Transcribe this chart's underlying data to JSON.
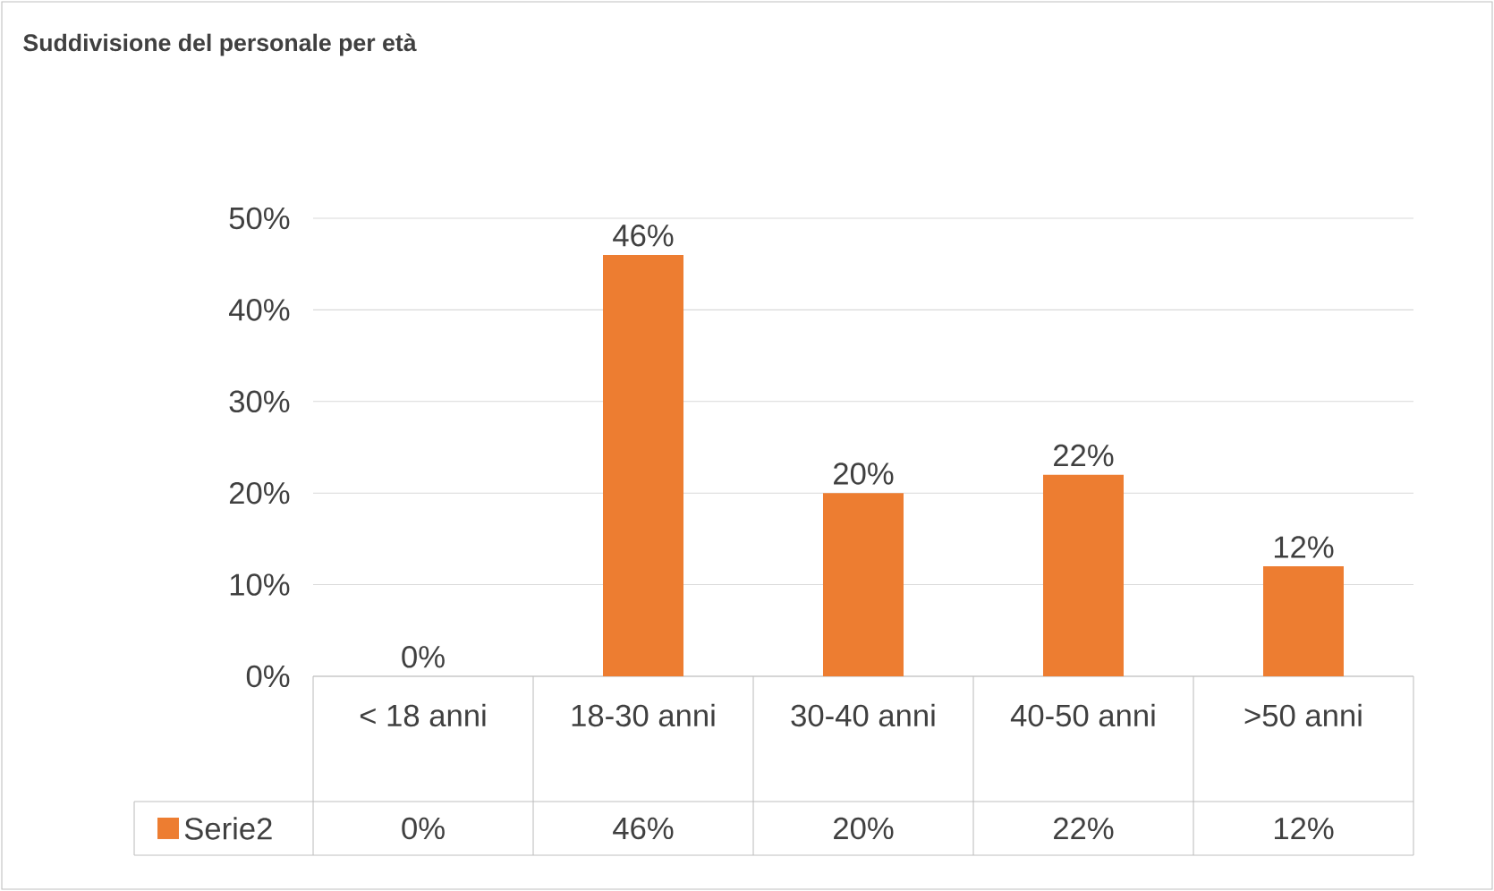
{
  "chart_data": {
    "type": "bar",
    "title": "Suddivisione del personale per età",
    "categories": [
      "< 18 anni",
      "18-30 anni",
      "30-40 anni",
      "40-50 anni",
      ">50 anni"
    ],
    "series": [
      {
        "name": "Serie2",
        "color": "#ed7d31",
        "values": [
          0,
          46,
          20,
          22,
          12
        ]
      }
    ],
    "value_labels": [
      "0%",
      "46%",
      "20%",
      "22%",
      "12%"
    ],
    "ylim": [
      0,
      50
    ],
    "yticks": [
      {
        "value": 0,
        "label": "0%"
      },
      {
        "value": 10,
        "label": "10%"
      },
      {
        "value": 20,
        "label": "20%"
      },
      {
        "value": 30,
        "label": "30%"
      },
      {
        "value": 40,
        "label": "40%"
      },
      {
        "value": 50,
        "label": "50%"
      }
    ],
    "grid": "y",
    "legend": "bottom"
  }
}
